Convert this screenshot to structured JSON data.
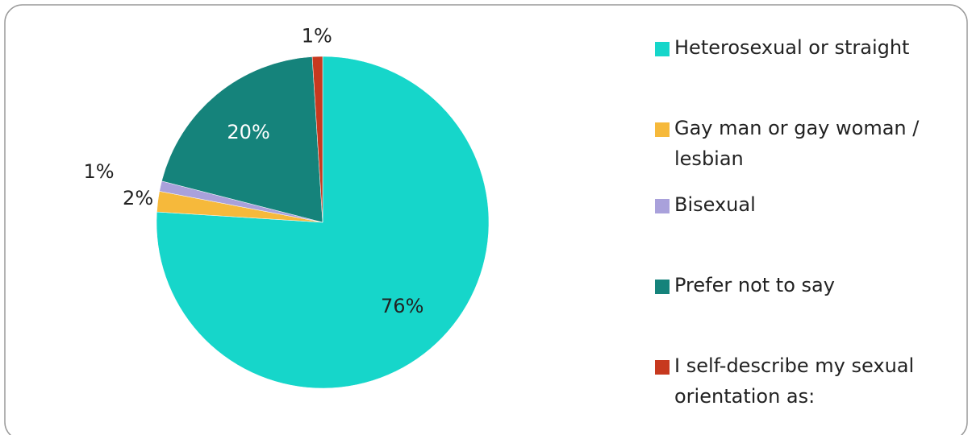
{
  "chart_data": {
    "type": "pie",
    "categories": [
      "Heterosexual or straight",
      "Gay man or gay woman / lesbian",
      "Bisexual",
      "Prefer not to say",
      "I self-describe my sexual orientation as:"
    ],
    "values": [
      76,
      2,
      1,
      20,
      1
    ],
    "value_labels": [
      "76%",
      "2%",
      "1%",
      "20%",
      "1%"
    ],
    "colors": [
      "#16d6ca",
      "#f6b93b",
      "#a9a1db",
      "#15837b",
      "#c7391f"
    ],
    "legend": "right"
  }
}
